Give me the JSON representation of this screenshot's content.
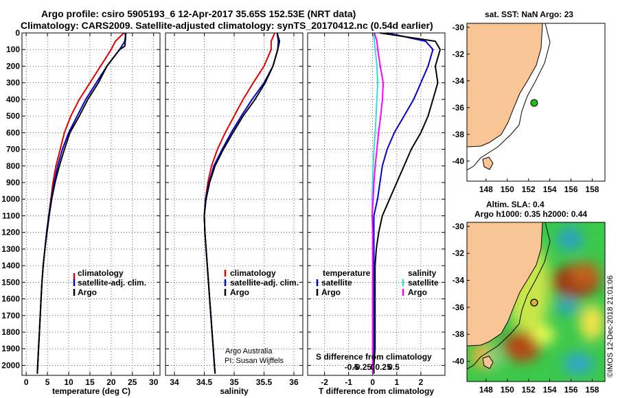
{
  "title_line1": "Argo profile: csiro 5905193_6 12-Apr-2017 35.65S 152.53E (NRT data)",
  "title_line2": "Climatology: CARS2009. Satellite-adjusted climatology: synTS_20170412.nc (0.54d earlier)",
  "credit_line1": "Argo Australia",
  "credit_line2": "PI: Susan Wijffels",
  "right_stamp": "©IMOS 12-Dec-2018 21:01:06",
  "colors": {
    "climatology": "#e00000",
    "satellite": "#0000cc",
    "argo": "#000000",
    "sat_salinity": "#33dddd",
    "argo_salinity": "#ff00ff",
    "land": "#f9c594",
    "ocean": "#ffffff"
  },
  "chart_data": [
    {
      "type": "line",
      "name": "temperature-panel",
      "xlabel": "temperature (deg C)",
      "ylabel": "",
      "xlim": [
        -1,
        31.5
      ],
      "ylim": [
        2060,
        0
      ],
      "xticks": [
        0,
        5,
        10,
        15,
        20,
        25,
        30
      ],
      "yticks": [
        0,
        100,
        200,
        300,
        400,
        500,
        600,
        700,
        800,
        900,
        1000,
        1100,
        1200,
        1300,
        1400,
        1500,
        1600,
        1700,
        1800,
        1900,
        2000
      ],
      "legend": [
        "climatology",
        "satellite-adj. clim.",
        "Argo"
      ],
      "series": [
        {
          "name": "climatology",
          "depth": [
            0,
            50,
            100,
            200,
            300,
            400,
            500,
            600,
            700,
            800,
            900,
            1000,
            1100,
            1200,
            1300,
            1400,
            1500,
            1600,
            1700,
            1800,
            1900,
            2000,
            2050
          ],
          "values": [
            23.0,
            21.0,
            20.0,
            17.5,
            15.0,
            12.5,
            10.5,
            9.0,
            8.0,
            7.0,
            6.3,
            5.8,
            5.3,
            4.8,
            4.4,
            4.0,
            3.7,
            3.5,
            3.3,
            3.1,
            2.9,
            2.7,
            2.6
          ]
        },
        {
          "name": "satellite-adj. clim.",
          "depth": [
            0,
            50,
            100,
            200,
            300,
            400,
            500,
            600,
            700,
            800,
            900,
            1000,
            1100,
            1200,
            1300,
            1400,
            1500,
            1600,
            1700,
            1800,
            1900,
            2000,
            2050
          ],
          "values": [
            23.5,
            23.2,
            22.0,
            19.0,
            16.5,
            14.0,
            12.0,
            10.0,
            8.5,
            7.4,
            6.6,
            5.9,
            5.3,
            4.8,
            4.4,
            4.0,
            3.7,
            3.5,
            3.3,
            3.1,
            2.9,
            2.7,
            2.6
          ]
        },
        {
          "name": "Argo",
          "depth": [
            0,
            30,
            80,
            100,
            200,
            300,
            400,
            500,
            600,
            700,
            800,
            900,
            1000,
            1100,
            1200,
            1300,
            1400,
            1500,
            1600,
            1700,
            1800,
            1900,
            2000,
            2050
          ],
          "values": [
            23.3,
            23.4,
            23.2,
            22.0,
            19.0,
            17.0,
            14.5,
            12.5,
            10.3,
            9.0,
            7.8,
            6.8,
            6.0,
            5.4,
            4.9,
            4.4,
            4.0,
            3.7,
            3.5,
            3.3,
            3.1,
            2.9,
            2.7,
            2.6
          ]
        }
      ]
    },
    {
      "type": "line",
      "name": "salinity-panel",
      "xlabel": "salinity",
      "ylabel": "",
      "xlim": [
        33.85,
        36.15
      ],
      "ylim": [
        2060,
        0
      ],
      "xticks": [
        34,
        34.5,
        35,
        35.5,
        36
      ],
      "legend": [
        "climatology",
        "satellite-adj. clim.",
        "Argo"
      ],
      "series": [
        {
          "name": "climatology",
          "depth": [
            0,
            50,
            100,
            200,
            300,
            400,
            500,
            600,
            700,
            800,
            900,
            1000,
            1100,
            1200,
            1300,
            1400,
            1500,
            1600,
            1700,
            1800,
            1900,
            2000,
            2050
          ],
          "values": [
            35.68,
            35.62,
            35.62,
            35.5,
            35.32,
            35.15,
            35.0,
            34.85,
            34.72,
            34.62,
            34.56,
            34.52,
            34.5,
            34.51,
            34.53,
            34.55,
            34.57,
            34.59,
            34.61,
            34.63,
            34.65,
            34.67,
            34.68
          ]
        },
        {
          "name": "satellite-adj. clim.",
          "depth": [
            0,
            50,
            100,
            200,
            300,
            400,
            500,
            600,
            700,
            800,
            900,
            1000,
            1100,
            1200,
            1300,
            1400,
            1500,
            1600,
            1700,
            1800,
            1900,
            2000,
            2050
          ],
          "values": [
            35.72,
            35.74,
            35.73,
            35.65,
            35.5,
            35.3,
            35.12,
            34.95,
            34.8,
            34.66,
            34.58,
            34.52,
            34.5,
            34.51,
            34.53,
            34.55,
            34.57,
            34.59,
            34.61,
            34.63,
            34.65,
            34.67,
            34.68
          ]
        },
        {
          "name": "Argo",
          "depth": [
            0,
            50,
            100,
            200,
            300,
            400,
            500,
            600,
            700,
            800,
            900,
            1000,
            1100,
            1200,
            1300,
            1400,
            1500,
            1600,
            1700,
            1800,
            1900,
            2000,
            2050
          ],
          "values": [
            35.72,
            35.76,
            35.73,
            35.65,
            35.52,
            35.35,
            35.15,
            34.98,
            34.82,
            34.68,
            34.59,
            34.53,
            34.5,
            34.51,
            34.53,
            34.55,
            34.57,
            34.59,
            34.61,
            34.63,
            34.65,
            34.67,
            34.68
          ]
        }
      ]
    },
    {
      "type": "line",
      "name": "difference-panel",
      "xlabel": "T difference from climatology",
      "top_label": "S difference from climatology",
      "xlim": [
        -2.7,
        3.0
      ],
      "ylim": [
        2060,
        0
      ],
      "xticks": [
        -2,
        -1,
        0,
        1,
        2
      ],
      "s_xticks": [
        "-0.5",
        "-0.25",
        "0",
        "0.25",
        "0.5"
      ],
      "s_xticks_values": [
        -0.5,
        -0.25,
        0,
        0.25,
        0.5
      ],
      "legend_temperature": {
        "title": "temperature",
        "items": [
          "satellite",
          "Argo"
        ]
      },
      "legend_salinity": {
        "title": "salinity",
        "items": [
          "satellite",
          "Argo"
        ]
      },
      "series": [
        {
          "name": "T satellite",
          "depth": [
            0,
            50,
            100,
            200,
            300,
            400,
            500,
            600,
            700,
            800,
            900,
            1000,
            1100,
            1200,
            1300,
            1400,
            1500,
            1600,
            1700,
            1800,
            1900,
            2000,
            2050
          ],
          "values": [
            0.6,
            2.2,
            2.5,
            2.3,
            2.0,
            1.7,
            1.3,
            0.9,
            0.6,
            0.4,
            0.3,
            0.2,
            0.05,
            0.05,
            0.05,
            0.05,
            0.05,
            0.05,
            0.05,
            0.05,
            0.05,
            0.05,
            0.05
          ]
        },
        {
          "name": "T Argo",
          "depth": [
            0,
            50,
            100,
            200,
            300,
            400,
            500,
            600,
            700,
            800,
            900,
            1000,
            1100,
            1200,
            1300,
            1400,
            1500,
            1600,
            1700,
            1800,
            1900,
            2000,
            2050
          ],
          "values": [
            0.3,
            2.6,
            2.8,
            2.6,
            2.7,
            2.5,
            2.3,
            2.0,
            1.6,
            1.3,
            1.0,
            0.7,
            0.4,
            0.25,
            0.15,
            0.1,
            0.1,
            0.1,
            0.1,
            0.1,
            0.1,
            0.05,
            0.05
          ]
        },
        {
          "name": "S satellite",
          "depth": [
            0,
            50,
            100,
            200,
            300,
            400,
            500,
            600,
            700,
            800,
            900,
            1000,
            1100,
            1200,
            1300,
            1400,
            1500,
            1600,
            1700,
            1800,
            1900,
            2000,
            2050
          ],
          "values": [
            0.02,
            0.04,
            0.06,
            0.1,
            0.12,
            0.1,
            0.08,
            0.06,
            0.03,
            0.01,
            0.0,
            -0.01,
            -0.01,
            0.0,
            0.0,
            0.0,
            0.0,
            0.0,
            0.0,
            0.0,
            0.0,
            0.0,
            0.0
          ]
        },
        {
          "name": "S Argo",
          "depth": [
            0,
            50,
            100,
            200,
            300,
            400,
            500,
            600,
            700,
            800,
            900,
            1000,
            1100,
            1200,
            1300,
            1400,
            1500,
            1600,
            1700,
            1800,
            1900,
            2000,
            2050
          ],
          "values": [
            0.04,
            0.1,
            0.12,
            0.18,
            0.25,
            0.23,
            0.19,
            0.14,
            0.1,
            0.06,
            0.03,
            0.01,
            -0.01,
            0.0,
            0.0,
            0.0,
            0.0,
            0.0,
            0.0,
            0.0,
            0.0,
            0.0,
            0.0
          ]
        }
      ]
    },
    {
      "type": "map",
      "name": "sst-map",
      "title": "sat. SST: NaN Argo: 23",
      "xticks": [
        148,
        150,
        152,
        154,
        156,
        158
      ],
      "yticks": [
        -30,
        -32,
        -34,
        -36,
        -38,
        -40
      ],
      "xlim": [
        146.2,
        159.2
      ],
      "ylim": [
        -41.5,
        -29.7
      ],
      "argo_position": {
        "lon": 152.53,
        "lat": -35.65
      }
    },
    {
      "type": "map",
      "name": "ssh-map",
      "title_line1": "Altim. SLA: 0.4",
      "title_line2": "Argo h1000: 0.35 h2000: 0.44",
      "xticks": [
        148,
        150,
        152,
        154,
        156,
        158
      ],
      "yticks": [
        -30,
        -32,
        -34,
        -36,
        -38,
        -40
      ],
      "xlim": [
        146.2,
        159.2
      ],
      "ylim": [
        -41.5,
        -29.7
      ],
      "argo_position": {
        "lon": 152.53,
        "lat": -35.65
      }
    }
  ]
}
